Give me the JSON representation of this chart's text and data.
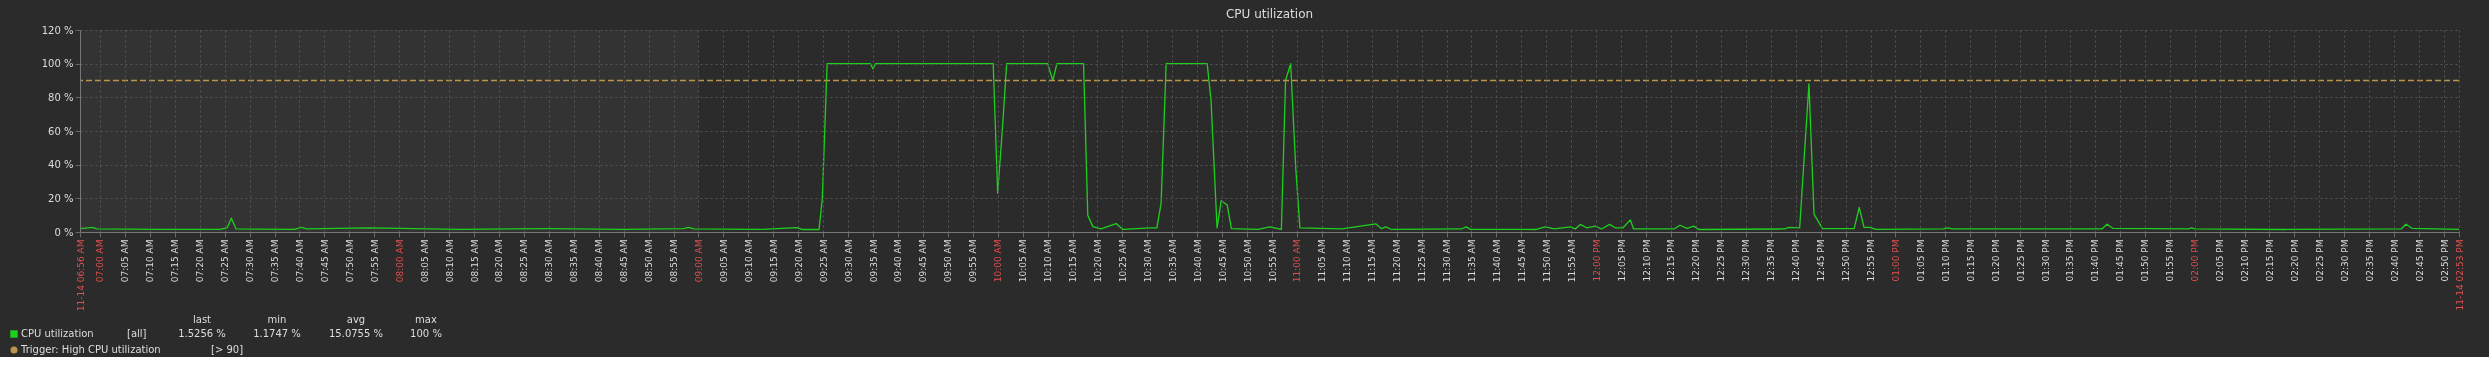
{
  "chart_data": {
    "type": "line",
    "title": "CPU utilization",
    "x": [
      6.9333,
      6.975,
      6.99,
      7.2,
      7.4,
      7.425,
      7.439,
      7.455,
      7.65,
      7.673,
      7.69,
      7.9,
      8.0,
      8.2,
      8.5,
      8.75,
      8.95,
      8.967,
      8.985,
      9.2,
      9.33,
      9.345,
      9.403,
      9.414,
      9.43,
      9.575,
      9.583,
      9.592,
      9.985,
      10.0,
      10.016,
      10.03,
      10.167,
      10.184,
      10.198,
      10.287,
      10.301,
      10.318,
      10.345,
      10.396,
      10.418,
      10.512,
      10.532,
      10.546,
      10.563,
      10.7,
      10.713,
      10.733,
      10.747,
      10.767,
      10.781,
      10.87,
      10.909,
      10.948,
      10.962,
      10.979,
      10.996,
      11.01,
      11.15,
      11.264,
      11.283,
      11.297,
      11.317,
      11.55,
      11.565,
      11.58,
      11.8,
      11.83,
      11.86,
      11.914,
      11.93,
      11.947,
      11.968,
      11.997,
      12.018,
      12.045,
      12.064,
      12.09,
      12.114,
      12.125,
      12.26,
      12.28,
      12.304,
      12.326,
      12.343,
      12.63,
      12.645,
      12.68,
      12.711,
      12.728,
      12.756,
      12.862,
      12.879,
      12.895,
      12.914,
      12.934,
      13.16,
      13.175,
      13.19,
      13.69,
      13.707,
      13.726,
      13.98,
      13.989,
      14.0,
      14.3,
      14.69,
      14.706,
      14.726,
      14.8833
    ],
    "series": [
      {
        "name": "CPU utilization",
        "color": "#1ed01e",
        "values": [
          2.0,
          2.8,
          1.8,
          1.6,
          1.6,
          2.5,
          8.2,
          1.8,
          1.6,
          2.8,
          1.8,
          2.4,
          2.2,
          1.6,
          2.0,
          1.6,
          2.0,
          2.8,
          1.8,
          1.5,
          2.6,
          1.5,
          1.5,
          20,
          100,
          100,
          97,
          100,
          100,
          23,
          62,
          100,
          100,
          90,
          100,
          100,
          10,
          3.2,
          1.8,
          5,
          1.5,
          2.5,
          2.5,
          17,
          100,
          100,
          78,
          2.4,
          18.6,
          16,
          2.0,
          1.5,
          3.0,
          1.5,
          90,
          100,
          38,
          2.5,
          1.8,
          4.8,
          2,
          3,
          1.5,
          1.8,
          3,
          1.6,
          1.5,
          3,
          1.8,
          3,
          1.8,
          4.5,
          2.5,
          3.5,
          1.8,
          4.5,
          2.5,
          2.5,
          7.2,
          1.8,
          1.8,
          4,
          2.2,
          3.5,
          1.5,
          1.8,
          2.8,
          2.5,
          88,
          10.6,
          2,
          2,
          14.6,
          2.8,
          2.8,
          1.5,
          1.8,
          2.5,
          1.8,
          1.8,
          4.6,
          2.2,
          1.8,
          2.5,
          1.8,
          1.5,
          1.8,
          4.6,
          2.2,
          1.5
        ]
      }
    ],
    "xlim": [
      6.9333,
      14.8833
    ],
    "xticks": [
      {
        "value": 6.9333,
        "label": "11-14 06:56 AM"
      },
      {
        "value": 7.0,
        "label": "07:00 AM"
      },
      {
        "value": 7.0833,
        "label": "07:05 AM"
      },
      {
        "value": 7.1667,
        "label": "07:10 AM"
      },
      {
        "value": 7.25,
        "label": "07:15 AM"
      },
      {
        "value": 7.3333,
        "label": "07:20 AM"
      },
      {
        "value": 7.4167,
        "label": "07:25 AM"
      },
      {
        "value": 7.5,
        "label": "07:30 AM"
      },
      {
        "value": 7.5833,
        "label": "07:35 AM"
      },
      {
        "value": 7.6667,
        "label": "07:40 AM"
      },
      {
        "value": 7.75,
        "label": "07:45 AM"
      },
      {
        "value": 7.8333,
        "label": "07:50 AM"
      },
      {
        "value": 7.9167,
        "label": "07:55 AM"
      },
      {
        "value": 8.0,
        "label": "08:00 AM"
      },
      {
        "value": 8.0833,
        "label": "08:05 AM"
      },
      {
        "value": 8.1667,
        "label": "08:10 AM"
      },
      {
        "value": 8.25,
        "label": "08:15 AM"
      },
      {
        "value": 8.3333,
        "label": "08:20 AM"
      },
      {
        "value": 8.4167,
        "label": "08:25 AM"
      },
      {
        "value": 8.5,
        "label": "08:30 AM"
      },
      {
        "value": 8.5833,
        "label": "08:35 AM"
      },
      {
        "value": 8.6667,
        "label": "08:40 AM"
      },
      {
        "value": 8.75,
        "label": "08:45 AM"
      },
      {
        "value": 8.8333,
        "label": "08:50 AM"
      },
      {
        "value": 8.9167,
        "label": "08:55 AM"
      },
      {
        "value": 9.0,
        "label": "09:00 AM"
      },
      {
        "value": 9.0833,
        "label": "09:05 AM"
      },
      {
        "value": 9.1667,
        "label": "09:10 AM"
      },
      {
        "value": 9.25,
        "label": "09:15 AM"
      },
      {
        "value": 9.3333,
        "label": "09:20 AM"
      },
      {
        "value": 9.4167,
        "label": "09:25 AM"
      },
      {
        "value": 9.5,
        "label": "09:30 AM"
      },
      {
        "value": 9.5833,
        "label": "09:35 AM"
      },
      {
        "value": 9.6667,
        "label": "09:40 AM"
      },
      {
        "value": 9.75,
        "label": "09:45 AM"
      },
      {
        "value": 9.8333,
        "label": "09:50 AM"
      },
      {
        "value": 9.9167,
        "label": "09:55 AM"
      },
      {
        "value": 10.0,
        "label": "10:00 AM"
      },
      {
        "value": 10.0833,
        "label": "10:05 AM"
      },
      {
        "value": 10.1667,
        "label": "10:10 AM"
      },
      {
        "value": 10.25,
        "label": "10:15 AM"
      },
      {
        "value": 10.3333,
        "label": "10:20 AM"
      },
      {
        "value": 10.4167,
        "label": "10:25 AM"
      },
      {
        "value": 10.5,
        "label": "10:30 AM"
      },
      {
        "value": 10.5833,
        "label": "10:35 AM"
      },
      {
        "value": 10.6667,
        "label": "10:40 AM"
      },
      {
        "value": 10.75,
        "label": "10:45 AM"
      },
      {
        "value": 10.8333,
        "label": "10:50 AM"
      },
      {
        "value": 10.9167,
        "label": "10:55 AM"
      },
      {
        "value": 11.0,
        "label": "11:00 AM"
      },
      {
        "value": 11.0833,
        "label": "11:05 AM"
      },
      {
        "value": 11.1667,
        "label": "11:10 AM"
      },
      {
        "value": 11.25,
        "label": "11:15 AM"
      },
      {
        "value": 11.3333,
        "label": "11:20 AM"
      },
      {
        "value": 11.4167,
        "label": "11:25 AM"
      },
      {
        "value": 11.5,
        "label": "11:30 AM"
      },
      {
        "value": 11.5833,
        "label": "11:35 AM"
      },
      {
        "value": 11.6667,
        "label": "11:40 AM"
      },
      {
        "value": 11.75,
        "label": "11:45 AM"
      },
      {
        "value": 11.8333,
        "label": "11:50 AM"
      },
      {
        "value": 11.9167,
        "label": "11:55 AM"
      },
      {
        "value": 12.0,
        "label": "12:00 PM"
      },
      {
        "value": 12.0833,
        "label": "12:05 PM"
      },
      {
        "value": 12.1667,
        "label": "12:10 PM"
      },
      {
        "value": 12.25,
        "label": "12:15 PM"
      },
      {
        "value": 12.3333,
        "label": "12:20 PM"
      },
      {
        "value": 12.4167,
        "label": "12:25 PM"
      },
      {
        "value": 12.5,
        "label": "12:30 PM"
      },
      {
        "value": 12.5833,
        "label": "12:35 PM"
      },
      {
        "value": 12.6667,
        "label": "12:40 PM"
      },
      {
        "value": 12.75,
        "label": "12:45 PM"
      },
      {
        "value": 12.8333,
        "label": "12:50 PM"
      },
      {
        "value": 12.9167,
        "label": "12:55 PM"
      },
      {
        "value": 13.0,
        "label": "01:00 PM"
      },
      {
        "value": 13.0833,
        "label": "01:05 PM"
      },
      {
        "value": 13.1667,
        "label": "01:10 PM"
      },
      {
        "value": 13.25,
        "label": "01:15 PM"
      },
      {
        "value": 13.3333,
        "label": "01:20 PM"
      },
      {
        "value": 13.4167,
        "label": "01:25 PM"
      },
      {
        "value": 13.5,
        "label": "01:30 PM"
      },
      {
        "value": 13.5833,
        "label": "01:35 PM"
      },
      {
        "value": 13.6667,
        "label": "01:40 PM"
      },
      {
        "value": 13.75,
        "label": "01:45 PM"
      },
      {
        "value": 13.8333,
        "label": "01:50 PM"
      },
      {
        "value": 13.9167,
        "label": "01:55 PM"
      },
      {
        "value": 14.0,
        "label": "02:00 PM"
      },
      {
        "value": 14.0833,
        "label": "02:05 PM"
      },
      {
        "value": 14.1667,
        "label": "02:10 PM"
      },
      {
        "value": 14.25,
        "label": "02:15 PM"
      },
      {
        "value": 14.3333,
        "label": "02:20 PM"
      },
      {
        "value": 14.4167,
        "label": "02:25 PM"
      },
      {
        "value": 14.5,
        "label": "02:30 PM"
      },
      {
        "value": 14.5833,
        "label": "02:35 PM"
      },
      {
        "value": 14.6667,
        "label": "02:40 PM"
      },
      {
        "value": 14.75,
        "label": "02:45 PM"
      },
      {
        "value": 14.8333,
        "label": "02:50 PM"
      },
      {
        "value": 14.8833,
        "label": "11-14 02:53 PM"
      }
    ],
    "ylim": [
      0,
      120
    ],
    "yticks": [
      {
        "value": 0,
        "label": "0 %"
      },
      {
        "value": 20,
        "label": "20 %"
      },
      {
        "value": 40,
        "label": "40 %"
      },
      {
        "value": 60,
        "label": "60 %"
      },
      {
        "value": 80,
        "label": "80 %"
      },
      {
        "value": 100,
        "label": "100 %"
      },
      {
        "value": 120,
        "label": "120 %"
      }
    ],
    "ref_lines": [
      {
        "axis": "y",
        "value": 90,
        "label": "Trigger: High CPU utilization",
        "color": "#b8954a",
        "line_style": "dashed"
      }
    ],
    "bands": [
      {
        "axis": "x",
        "from": 6.9333,
        "to": 9.0,
        "color": "#333333"
      }
    ],
    "annotations": [
      "last",
      "min",
      "avg",
      "max",
      "[all]",
      "1.5256 %",
      "1.1747 %",
      "15.0755 %",
      "100 %",
      "[> 90]"
    ],
    "grid": true,
    "legend": "bottom",
    "marker": "none",
    "line_style": "solid"
  }
}
